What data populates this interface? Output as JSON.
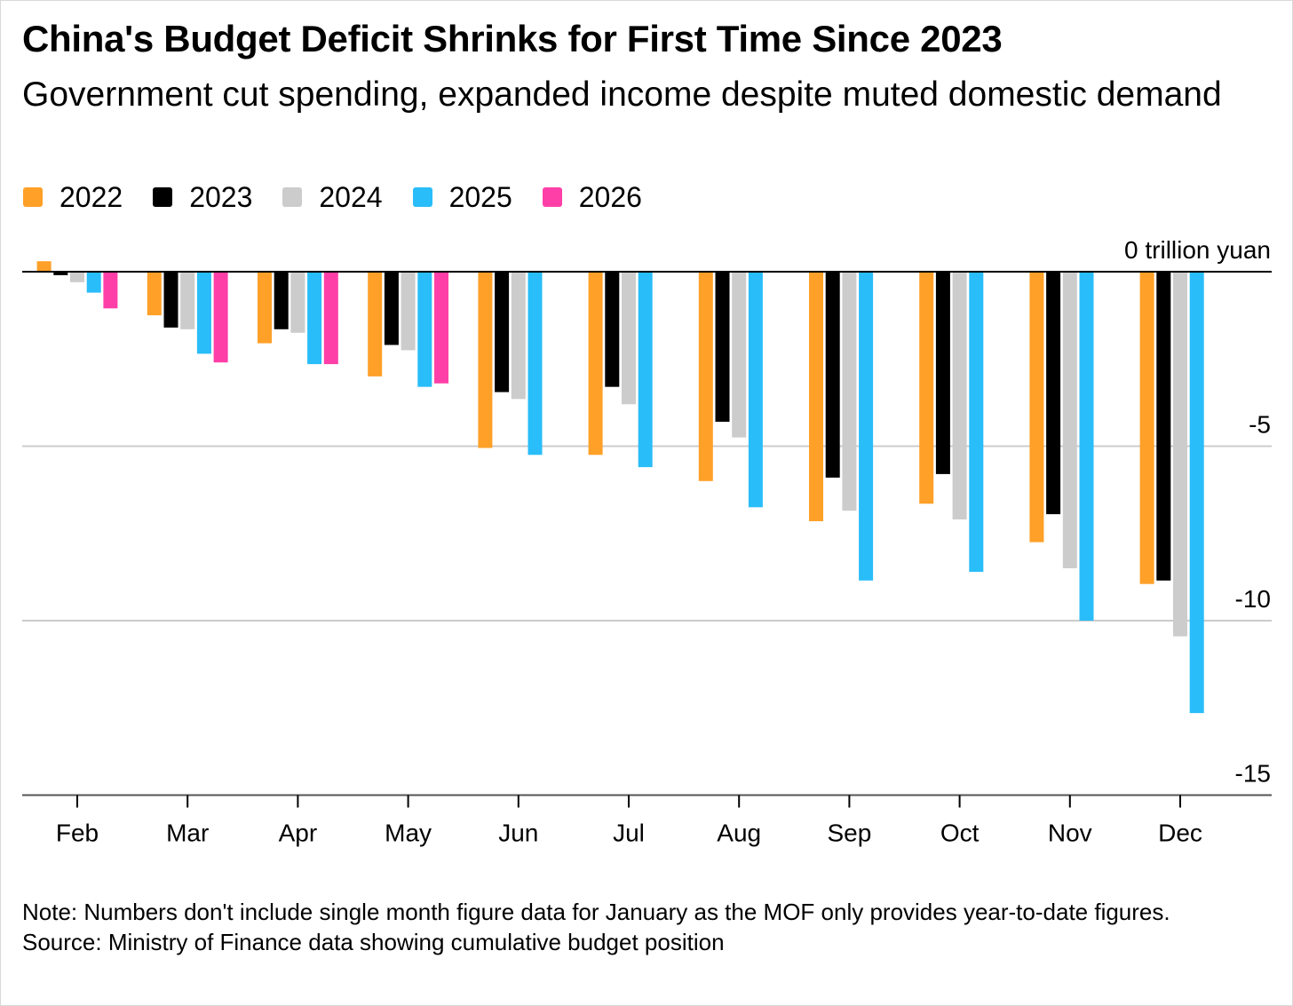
{
  "title": "China's Budget Deficit Shrinks for First Time Since 2023",
  "subtitle": "Government cut spending, expanded income despite muted domestic demand",
  "note": "Note: Numbers don't include single month figure data for January as the MOF only provides year-to-date figures.",
  "source": "Source: Ministry of Finance data showing cumulative budget position",
  "chart_data": {
    "type": "bar",
    "unit_label": "0 trillion yuan",
    "categories": [
      "Feb",
      "Mar",
      "Apr",
      "May",
      "Jun",
      "Jul",
      "Aug",
      "Sep",
      "Oct",
      "Nov",
      "Dec"
    ],
    "series": [
      {
        "name": "2022",
        "color": "#ffa028",
        "values": [
          0.3,
          -1.25,
          -2.05,
          -3.0,
          -5.05,
          -5.25,
          -6.0,
          -7.15,
          -6.65,
          -7.75,
          -8.95
        ]
      },
      {
        "name": "2023",
        "color": "#000000",
        "values": [
          -0.1,
          -1.6,
          -1.65,
          -2.1,
          -3.45,
          -3.3,
          -4.3,
          -5.9,
          -5.8,
          -6.95,
          -8.85
        ]
      },
      {
        "name": "2024",
        "color": "#cccccc",
        "values": [
          -0.3,
          -1.65,
          -1.75,
          -2.25,
          -3.65,
          -3.8,
          -4.75,
          -6.85,
          -7.1,
          -8.5,
          -10.45
        ]
      },
      {
        "name": "2025",
        "color": "#29bdf9",
        "values": [
          -0.6,
          -2.35,
          -2.65,
          -3.3,
          -5.25,
          -5.6,
          -6.75,
          -8.85,
          -8.6,
          -10.0,
          -12.65
        ]
      },
      {
        "name": "2026",
        "color": "#ff3fa8",
        "values": [
          -1.05,
          -2.6,
          -2.65,
          -3.2,
          null,
          null,
          null,
          null,
          null,
          null,
          null
        ]
      }
    ],
    "yticks": [
      {
        "value": 0,
        "label": "0 trillion yuan"
      },
      {
        "value": -5,
        "label": "-5"
      },
      {
        "value": -10,
        "label": "-10"
      },
      {
        "value": -15,
        "label": "-15"
      }
    ],
    "ylim": [
      -15,
      0.5
    ],
    "grid": true,
    "legend_position": "top-left"
  }
}
